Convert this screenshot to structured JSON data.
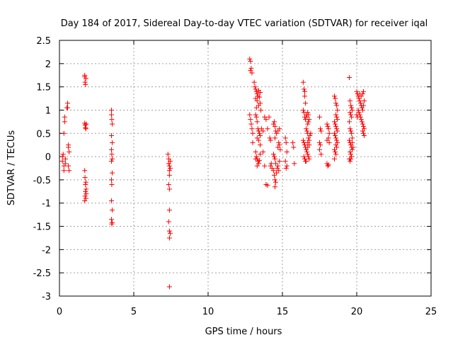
{
  "chart_data": {
    "type": "scatter",
    "title": "Day 184 of 2017, Sidereal Day-to-day VTEC variation (SDTVAR) for receiver iqal",
    "xlabel": "GPS time / hours",
    "ylabel": "SDTVAR / TECUs",
    "xlim": [
      0,
      25
    ],
    "ylim": [
      -3,
      2.5
    ],
    "xticks": [
      0,
      5,
      10,
      15,
      20,
      25
    ],
    "yticks": [
      -3,
      -2.5,
      -2,
      -1.5,
      -1,
      -0.5,
      0,
      0.5,
      1,
      1.5,
      2,
      2.5
    ],
    "grid": true,
    "marker": "+",
    "color": "#ff0000",
    "series": [
      {
        "name": "SDTVAR",
        "points": [
          [
            0.2,
            0.0
          ],
          [
            0.2,
            -0.1
          ],
          [
            0.25,
            0.05
          ],
          [
            0.3,
            -0.2
          ],
          [
            0.3,
            -0.3
          ],
          [
            0.3,
            0.5
          ],
          [
            0.35,
            0.75
          ],
          [
            0.35,
            0.85
          ],
          [
            0.4,
            -0.05
          ],
          [
            0.4,
            -0.15
          ],
          [
            0.5,
            1.05
          ],
          [
            0.55,
            1.15
          ],
          [
            0.55,
            1.05
          ],
          [
            0.6,
            0.2
          ],
          [
            0.6,
            0.25
          ],
          [
            0.6,
            -0.2
          ],
          [
            0.65,
            -0.3
          ],
          [
            0.65,
            0.1
          ],
          [
            1.7,
            1.72
          ],
          [
            1.7,
            1.75
          ],
          [
            1.72,
            1.6
          ],
          [
            1.75,
            1.55
          ],
          [
            1.78,
            1.68
          ],
          [
            1.7,
            0.72
          ],
          [
            1.72,
            0.68
          ],
          [
            1.75,
            0.62
          ],
          [
            1.78,
            0.6
          ],
          [
            1.8,
            0.7
          ],
          [
            1.7,
            -0.3
          ],
          [
            1.72,
            -0.45
          ],
          [
            1.75,
            -0.6
          ],
          [
            1.75,
            -0.75
          ],
          [
            1.72,
            -0.85
          ],
          [
            1.7,
            -0.95
          ],
          [
            1.78,
            -0.55
          ],
          [
            1.8,
            -0.7
          ],
          [
            1.78,
            -0.9
          ],
          [
            1.8,
            -0.8
          ],
          [
            3.5,
            1.0
          ],
          [
            3.5,
            0.9
          ],
          [
            3.52,
            0.8
          ],
          [
            3.55,
            0.7
          ],
          [
            3.5,
            0.45
          ],
          [
            3.55,
            0.3
          ],
          [
            3.5,
            0.15
          ],
          [
            3.52,
            0.05
          ],
          [
            3.55,
            -0.05
          ],
          [
            3.5,
            -0.1
          ],
          [
            3.55,
            -0.35
          ],
          [
            3.5,
            -0.5
          ],
          [
            3.52,
            -0.6
          ],
          [
            3.5,
            -0.95
          ],
          [
            3.55,
            -1.15
          ],
          [
            3.5,
            -1.35
          ],
          [
            3.52,
            -1.45
          ],
          [
            3.55,
            -1.42
          ],
          [
            7.3,
            0.05
          ],
          [
            7.35,
            -0.05
          ],
          [
            7.35,
            -0.15
          ],
          [
            7.4,
            -0.2
          ],
          [
            7.4,
            -0.3
          ],
          [
            7.45,
            -0.1
          ],
          [
            7.45,
            -0.25
          ],
          [
            7.4,
            -0.4
          ],
          [
            7.35,
            -0.6
          ],
          [
            7.4,
            -0.7
          ],
          [
            7.4,
            -1.15
          ],
          [
            7.35,
            -1.4
          ],
          [
            7.4,
            -1.6
          ],
          [
            7.45,
            -1.65
          ],
          [
            7.4,
            -1.75
          ],
          [
            7.4,
            -2.8
          ],
          [
            12.8,
            2.1
          ],
          [
            12.85,
            2.05
          ],
          [
            12.9,
            1.9
          ],
          [
            12.95,
            1.8
          ],
          [
            12.85,
            1.85
          ],
          [
            12.8,
            0.9
          ],
          [
            12.85,
            0.8
          ],
          [
            12.9,
            0.7
          ],
          [
            12.95,
            0.6
          ],
          [
            13.0,
            0.5
          ],
          [
            13.0,
            0.3
          ],
          [
            13.1,
            1.6
          ],
          [
            13.15,
            1.5
          ],
          [
            13.2,
            1.45
          ],
          [
            13.25,
            1.4
          ],
          [
            13.3,
            1.35
          ],
          [
            13.35,
            1.3
          ],
          [
            13.2,
            1.25
          ],
          [
            13.3,
            1.2
          ],
          [
            13.4,
            1.1
          ],
          [
            13.25,
            1.05
          ],
          [
            13.4,
            1.42
          ],
          [
            13.5,
            1.38
          ],
          [
            13.45,
            1.28
          ],
          [
            13.5,
            1.15
          ],
          [
            13.55,
            1.0
          ],
          [
            13.2,
            0.9
          ],
          [
            13.25,
            0.85
          ],
          [
            13.3,
            0.75
          ],
          [
            13.35,
            0.6
          ],
          [
            13.4,
            0.55
          ],
          [
            13.45,
            0.5
          ],
          [
            13.5,
            0.45
          ],
          [
            13.3,
            0.4
          ],
          [
            13.4,
            0.35
          ],
          [
            13.5,
            0.25
          ],
          [
            13.2,
            0.1
          ],
          [
            13.25,
            0.0
          ],
          [
            13.3,
            -0.05
          ],
          [
            13.35,
            -0.1
          ],
          [
            13.4,
            -0.15
          ],
          [
            13.3,
            -0.2
          ],
          [
            13.2,
            -0.05
          ],
          [
            13.45,
            -0.08
          ],
          [
            13.5,
            0.05
          ],
          [
            13.6,
            0.6
          ],
          [
            13.7,
            0.55
          ],
          [
            13.8,
            0.85
          ],
          [
            13.9,
            0.8
          ],
          [
            14.0,
            0.6
          ],
          [
            13.7,
            0.1
          ],
          [
            13.8,
            -0.2
          ],
          [
            13.9,
            -0.6
          ],
          [
            14.0,
            -0.62
          ],
          [
            14.1,
            0.85
          ],
          [
            14.15,
            0.4
          ],
          [
            14.2,
            0.35
          ],
          [
            14.25,
            -0.15
          ],
          [
            14.2,
            -0.2
          ],
          [
            14.3,
            -0.25
          ],
          [
            14.4,
            0.7
          ],
          [
            14.45,
            0.75
          ],
          [
            14.5,
            0.65
          ],
          [
            14.55,
            0.55
          ],
          [
            14.5,
            0.4
          ],
          [
            14.6,
            0.5
          ],
          [
            14.4,
            0.05
          ],
          [
            14.45,
            0.0
          ],
          [
            14.5,
            -0.05
          ],
          [
            14.55,
            -0.15
          ],
          [
            14.4,
            -0.3
          ],
          [
            14.45,
            -0.4
          ],
          [
            14.5,
            -0.5
          ],
          [
            14.55,
            -0.55
          ],
          [
            14.5,
            -0.65
          ],
          [
            14.6,
            -0.35
          ],
          [
            14.65,
            -0.25
          ],
          [
            14.7,
            -0.2
          ],
          [
            14.75,
            -0.3
          ],
          [
            14.8,
            -0.1
          ],
          [
            14.7,
            0.2
          ],
          [
            14.75,
            0.3
          ],
          [
            14.8,
            0.25
          ],
          [
            14.85,
            0.15
          ],
          [
            14.7,
            0.55
          ],
          [
            14.8,
            0.6
          ],
          [
            15.2,
            0.4
          ],
          [
            15.25,
            0.3
          ],
          [
            15.3,
            0.1
          ],
          [
            15.2,
            -0.1
          ],
          [
            15.3,
            -0.2
          ],
          [
            15.25,
            -0.25
          ],
          [
            15.7,
            0.3
          ],
          [
            15.75,
            0.2
          ],
          [
            15.8,
            -0.15
          ],
          [
            16.4,
            1.6
          ],
          [
            16.45,
            1.45
          ],
          [
            16.5,
            1.4
          ],
          [
            16.5,
            1.3
          ],
          [
            16.55,
            1.15
          ],
          [
            16.4,
            1.0
          ],
          [
            16.45,
            0.95
          ],
          [
            16.5,
            0.85
          ],
          [
            16.55,
            0.8
          ],
          [
            16.6,
            0.9
          ],
          [
            16.65,
            0.85
          ],
          [
            16.7,
            0.95
          ],
          [
            16.75,
            0.9
          ],
          [
            16.8,
            0.8
          ],
          [
            16.7,
            0.7
          ],
          [
            16.75,
            0.75
          ],
          [
            16.6,
            0.6
          ],
          [
            16.65,
            0.55
          ],
          [
            16.7,
            0.5
          ],
          [
            16.4,
            0.35
          ],
          [
            16.45,
            0.3
          ],
          [
            16.5,
            0.25
          ],
          [
            16.55,
            0.2
          ],
          [
            16.6,
            0.15
          ],
          [
            16.65,
            0.1
          ],
          [
            16.7,
            0.05
          ],
          [
            16.75,
            0.0
          ],
          [
            16.8,
            -0.05
          ],
          [
            16.6,
            -0.1
          ],
          [
            16.45,
            0.0
          ],
          [
            16.5,
            -0.05
          ],
          [
            16.55,
            -0.1
          ],
          [
            16.7,
            0.3
          ],
          [
            16.75,
            0.4
          ],
          [
            16.8,
            0.35
          ],
          [
            16.7,
            0.2
          ],
          [
            16.8,
            0.25
          ],
          [
            16.85,
            0.45
          ],
          [
            16.9,
            0.5
          ],
          [
            17.5,
            0.85
          ],
          [
            17.55,
            0.6
          ],
          [
            17.6,
            0.55
          ],
          [
            17.5,
            0.3
          ],
          [
            17.55,
            0.25
          ],
          [
            17.5,
            0.15
          ],
          [
            17.6,
            0.05
          ],
          [
            18.0,
            0.7
          ],
          [
            18.05,
            0.65
          ],
          [
            18.1,
            0.6
          ],
          [
            18.15,
            0.5
          ],
          [
            18.0,
            0.35
          ],
          [
            18.1,
            0.4
          ],
          [
            18.15,
            0.3
          ],
          [
            18.0,
            -0.15
          ],
          [
            18.05,
            -0.2
          ],
          [
            18.1,
            -0.18
          ],
          [
            18.5,
            1.3
          ],
          [
            18.55,
            1.25
          ],
          [
            18.6,
            1.15
          ],
          [
            18.65,
            1.1
          ],
          [
            18.7,
            1.0
          ],
          [
            18.6,
            0.9
          ],
          [
            18.65,
            0.85
          ],
          [
            18.7,
            0.8
          ],
          [
            18.5,
            0.75
          ],
          [
            18.55,
            0.7
          ],
          [
            18.6,
            0.65
          ],
          [
            18.65,
            0.6
          ],
          [
            18.7,
            0.55
          ],
          [
            18.5,
            0.5
          ],
          [
            18.55,
            0.45
          ],
          [
            18.6,
            0.4
          ],
          [
            18.65,
            0.35
          ],
          [
            18.7,
            0.3
          ],
          [
            18.6,
            0.25
          ],
          [
            18.65,
            0.2
          ],
          [
            18.5,
            0.15
          ],
          [
            18.55,
            0.1
          ],
          [
            18.6,
            0.05
          ],
          [
            18.5,
            -0.05
          ],
          [
            19.5,
            1.7
          ],
          [
            19.55,
            1.2
          ],
          [
            19.6,
            1.1
          ],
          [
            19.65,
            1.05
          ],
          [
            19.7,
            1.0
          ],
          [
            19.55,
            0.95
          ],
          [
            19.6,
            0.9
          ],
          [
            19.65,
            0.85
          ],
          [
            19.5,
            0.75
          ],
          [
            19.55,
            0.6
          ],
          [
            19.6,
            0.55
          ],
          [
            19.65,
            0.5
          ],
          [
            19.7,
            0.4
          ],
          [
            19.5,
            0.35
          ],
          [
            19.55,
            0.3
          ],
          [
            19.6,
            0.25
          ],
          [
            19.65,
            0.2
          ],
          [
            19.7,
            0.15
          ],
          [
            19.55,
            0.1
          ],
          [
            19.6,
            0.05
          ],
          [
            19.65,
            0.0
          ],
          [
            19.5,
            -0.05
          ],
          [
            19.55,
            -0.1
          ],
          [
            19.6,
            -0.05
          ],
          [
            19.7,
            0.3
          ],
          [
            19.75,
            0.2
          ],
          [
            20.0,
            1.4
          ],
          [
            20.05,
            1.35
          ],
          [
            20.1,
            1.3
          ],
          [
            20.15,
            1.25
          ],
          [
            20.2,
            1.2
          ],
          [
            20.25,
            1.15
          ],
          [
            20.3,
            1.1
          ],
          [
            20.35,
            1.05
          ],
          [
            20.4,
            1.0
          ],
          [
            20.45,
            1.1
          ],
          [
            20.5,
            1.2
          ],
          [
            20.4,
            1.35
          ],
          [
            20.45,
            1.4
          ],
          [
            20.3,
            1.3
          ],
          [
            20.2,
            1.35
          ],
          [
            20.1,
            1.0
          ],
          [
            20.15,
            0.95
          ],
          [
            20.2,
            0.9
          ],
          [
            20.25,
            0.85
          ],
          [
            20.3,
            0.8
          ],
          [
            20.0,
            0.9
          ],
          [
            20.05,
            0.85
          ],
          [
            20.35,
            0.75
          ],
          [
            20.4,
            0.7
          ],
          [
            20.45,
            0.65
          ],
          [
            20.5,
            0.6
          ],
          [
            20.4,
            0.55
          ],
          [
            20.45,
            0.5
          ],
          [
            20.5,
            0.45
          ]
        ]
      }
    ]
  }
}
